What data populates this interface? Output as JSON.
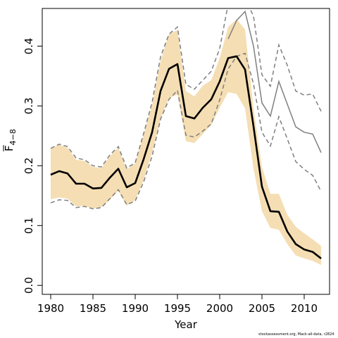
{
  "chart_data": {
    "type": "line",
    "xlabel": "Year",
    "ylabel": "F",
    "ylabel_subscript": "4−8",
    "xlim": [
      1979,
      2013
    ],
    "ylim": [
      -0.015,
      0.463
    ],
    "x_ticks": [
      1980,
      1985,
      1990,
      1995,
      2000,
      2005,
      2010
    ],
    "y_ticks": [
      0.0,
      0.1,
      0.2,
      0.3,
      0.4
    ],
    "y_tick_labels": [
      "0.0",
      "0.1",
      "0.2",
      "0.3",
      "0.4"
    ],
    "grid": false,
    "colors": {
      "band": "#f5deb3",
      "estimate": "#000000",
      "prior_estimate": "#7f7f7f",
      "prior_bounds": "#7f7f7f"
    },
    "x": [
      1980,
      1981,
      1982,
      1983,
      1984,
      1985,
      1986,
      1987,
      1988,
      1989,
      1990,
      1991,
      1992,
      1993,
      1994,
      1995,
      1996,
      1997,
      1998,
      1999,
      2000,
      2001,
      2002,
      2003,
      2004,
      2005,
      2006,
      2007,
      2008,
      2009,
      2010,
      2011,
      2012
    ],
    "series": [
      {
        "role": "band_upper",
        "values": [
          0.229,
          0.235,
          0.23,
          0.21,
          0.208,
          0.198,
          0.196,
          0.216,
          0.23,
          0.194,
          0.204,
          0.252,
          0.302,
          0.375,
          0.42,
          0.427,
          0.325,
          0.316,
          0.334,
          0.343,
          0.38,
          0.432,
          0.445,
          0.428,
          0.296,
          0.198,
          0.153,
          0.153,
          0.118,
          0.098,
          0.087,
          0.077,
          0.066
        ]
      },
      {
        "role": "band_lower",
        "values": [
          0.144,
          0.147,
          0.145,
          0.132,
          0.133,
          0.128,
          0.131,
          0.143,
          0.158,
          0.133,
          0.143,
          0.176,
          0.222,
          0.278,
          0.313,
          0.319,
          0.241,
          0.238,
          0.253,
          0.268,
          0.297,
          0.323,
          0.32,
          0.296,
          0.195,
          0.124,
          0.096,
          0.093,
          0.069,
          0.05,
          0.045,
          0.041,
          0.034
        ]
      },
      {
        "role": "estimate",
        "values": [
          0.185,
          0.191,
          0.187,
          0.17,
          0.17,
          0.162,
          0.163,
          0.18,
          0.195,
          0.164,
          0.171,
          0.211,
          0.256,
          0.325,
          0.362,
          0.37,
          0.283,
          0.279,
          0.297,
          0.311,
          0.341,
          0.38,
          0.383,
          0.361,
          0.266,
          0.165,
          0.124,
          0.123,
          0.09,
          0.069,
          0.06,
          0.056,
          0.045
        ]
      },
      {
        "role": "prior_estimate",
        "values": [
          null,
          null,
          null,
          null,
          null,
          null,
          null,
          null,
          null,
          null,
          null,
          null,
          null,
          null,
          null,
          null,
          null,
          null,
          null,
          null,
          null,
          0.412,
          0.443,
          0.458,
          0.4,
          0.305,
          0.283,
          0.341,
          0.303,
          0.265,
          0.256,
          0.253,
          0.222
        ]
      },
      {
        "role": "prior_upper",
        "values": [
          0.229,
          0.236,
          0.232,
          0.213,
          0.21,
          0.2,
          0.198,
          0.218,
          0.232,
          0.196,
          0.205,
          0.254,
          0.306,
          0.382,
          0.42,
          0.432,
          0.336,
          0.328,
          0.343,
          0.358,
          0.396,
          0.47,
          0.48,
          0.48,
          0.45,
          0.352,
          0.333,
          0.402,
          0.368,
          0.325,
          0.318,
          0.32,
          0.291
        ]
      },
      {
        "role": "prior_lower",
        "values": [
          0.138,
          0.143,
          0.142,
          0.13,
          0.132,
          0.128,
          0.13,
          0.145,
          0.16,
          0.135,
          0.141,
          0.173,
          0.216,
          0.278,
          0.311,
          0.326,
          0.251,
          0.248,
          0.258,
          0.27,
          0.31,
          0.362,
          0.383,
          0.388,
          0.337,
          0.256,
          0.233,
          0.282,
          0.245,
          0.207,
          0.194,
          0.184,
          0.157
        ]
      }
    ]
  },
  "footer": {
    "credit": "stockassessment.org, Mack-all-data, r2824"
  }
}
